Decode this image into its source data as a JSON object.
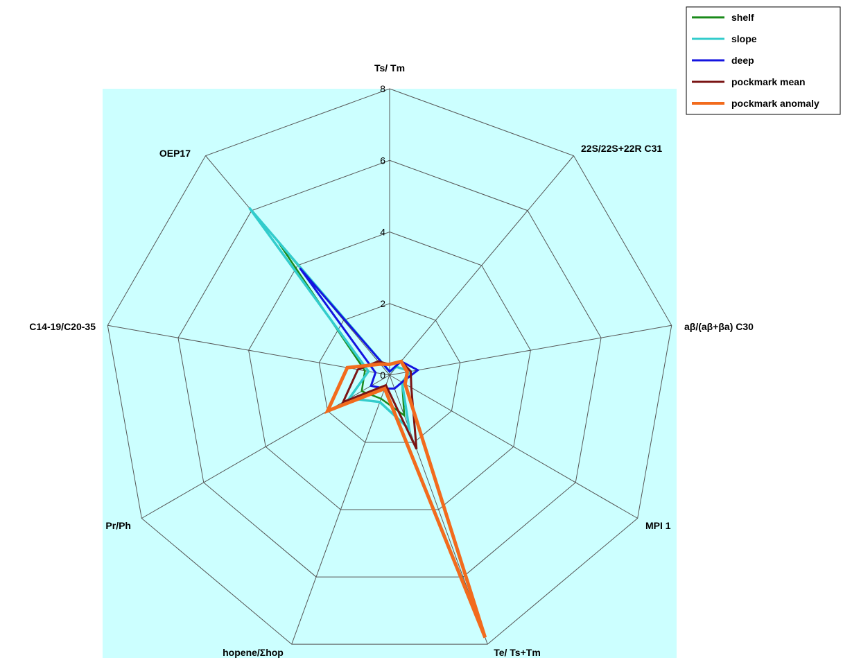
{
  "chart_data": {
    "type": "radar",
    "title": "",
    "axes": [
      "Ts/ Tm",
      "22S/22S+22R C31",
      "aβ/(aβ+βa) C30",
      "MPI 1",
      "Te/ Ts+Tm",
      "hopene/Σhop",
      "Pr/Ph",
      "C14-19/C20-35",
      "OEP17"
    ],
    "rlim": [
      0,
      8
    ],
    "rticks": [
      0,
      2,
      4,
      6,
      8
    ],
    "rtick_labels": [
      "0",
      "2",
      "4",
      "6",
      "8"
    ],
    "background_color": "#ccffff",
    "grid_color": "#555555",
    "legend_position": "top-right",
    "series": [
      {
        "name": "shelf",
        "color": "#1a8a1a",
        "values": [
          0.1,
          0.3,
          0.6,
          0.4,
          1.2,
          0.7,
          0.9,
          0.7,
          4.8
        ]
      },
      {
        "name": "slope",
        "color": "#33cccc",
        "values": [
          0.1,
          0.3,
          0.6,
          0.4,
          1.6,
          0.8,
          1.3,
          0.6,
          6.1
        ]
      },
      {
        "name": "deep",
        "color": "#1414e0",
        "values": [
          0.1,
          0.5,
          0.8,
          0.4,
          0.4,
          0.4,
          0.6,
          0.4,
          3.9
        ]
      },
      {
        "name": "pockmark mean",
        "color": "#7a1414",
        "values": [
          0.3,
          0.5,
          0.6,
          0.7,
          2.2,
          0.3,
          1.5,
          0.9,
          0.5
        ]
      },
      {
        "name": "pockmark anomaly",
        "color": "#f26b1d",
        "values": [
          0.3,
          0.5,
          0.5,
          0.5,
          7.8,
          0.4,
          2.0,
          1.2,
          0.4
        ]
      }
    ]
  }
}
